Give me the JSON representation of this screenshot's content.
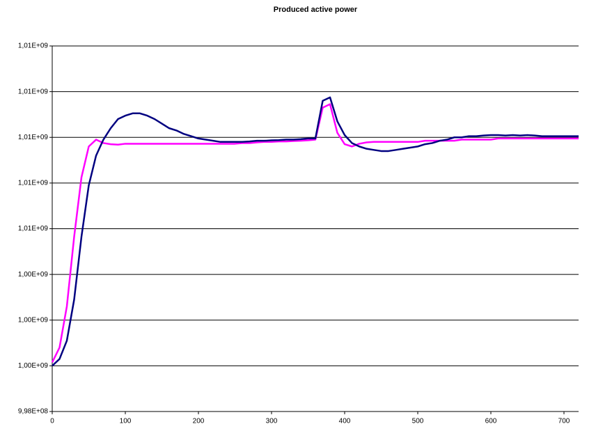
{
  "chart_data": {
    "type": "line",
    "title": "Produced active power",
    "x": [
      0,
      10,
      20,
      30,
      40,
      50,
      60,
      70,
      80,
      90,
      100,
      110,
      120,
      130,
      140,
      150,
      160,
      170,
      180,
      190,
      200,
      210,
      220,
      230,
      240,
      250,
      260,
      270,
      280,
      290,
      300,
      310,
      320,
      330,
      340,
      350,
      360,
      370,
      380,
      390,
      400,
      410,
      420,
      430,
      440,
      450,
      460,
      470,
      480,
      490,
      500,
      510,
      520,
      530,
      540,
      550,
      560,
      570,
      580,
      590,
      600,
      610,
      620,
      630,
      640,
      650,
      660,
      670,
      680,
      690,
      700,
      710,
      720
    ],
    "series": [
      {
        "color": "#ff00ff",
        "values": [
          1000150000,
          1000800000,
          1002600000,
          1005650000,
          1008250000,
          1009600000,
          1009900000,
          1009750000,
          1009700000,
          1009680000,
          1009720000,
          1009720000,
          1009720000,
          1009720000,
          1009720000,
          1009720000,
          1009720000,
          1009720000,
          1009720000,
          1009720000,
          1009720000,
          1009720000,
          1009720000,
          1009720000,
          1009720000,
          1009720000,
          1009750000,
          1009750000,
          1009780000,
          1009800000,
          1009800000,
          1009820000,
          1009820000,
          1009840000,
          1009850000,
          1009870000,
          1009900000,
          1011300000,
          1011450000,
          1010200000,
          1009700000,
          1009600000,
          1009720000,
          1009780000,
          1009800000,
          1009800000,
          1009800000,
          1009800000,
          1009800000,
          1009800000,
          1009800000,
          1009850000,
          1009850000,
          1009850000,
          1009850000,
          1009850000,
          1009900000,
          1009900000,
          1009900000,
          1009900000,
          1009900000,
          1009950000,
          1009950000,
          1009950000,
          1009950000,
          1009950000,
          1009950000,
          1009950000,
          1009950000,
          1009950000,
          1009950000,
          1009950000,
          1009950000
        ]
      },
      {
        "color": "#000080",
        "values": [
          1000000000,
          1000300000,
          1001100000,
          1002900000,
          1005650000,
          1007900000,
          1009200000,
          1009900000,
          1010400000,
          1010800000,
          1010950000,
          1011050000,
          1011050000,
          1010950000,
          1010800000,
          1010600000,
          1010400000,
          1010300000,
          1010150000,
          1010050000,
          1009950000,
          1009900000,
          1009850000,
          1009800000,
          1009800000,
          1009800000,
          1009800000,
          1009820000,
          1009850000,
          1009850000,
          1009870000,
          1009880000,
          1009900000,
          1009900000,
          1009920000,
          1009950000,
          1009950000,
          1011600000,
          1011750000,
          1010700000,
          1010100000,
          1009750000,
          1009600000,
          1009500000,
          1009450000,
          1009400000,
          1009400000,
          1009450000,
          1009500000,
          1009550000,
          1009600000,
          1009700000,
          1009750000,
          1009850000,
          1009900000,
          1010000000,
          1010000000,
          1010050000,
          1010050000,
          1010080000,
          1010100000,
          1010100000,
          1010080000,
          1010100000,
          1010080000,
          1010100000,
          1010080000,
          1010050000,
          1010050000,
          1010050000,
          1010050000,
          1010050000,
          1010050000
        ]
      }
    ],
    "xlim": [
      0,
      720
    ],
    "xticks": [
      0,
      100,
      200,
      300,
      400,
      500,
      600,
      700
    ],
    "ylim": [
      998000000,
      1014000000
    ],
    "yticks": [
      {
        "value": 998000000,
        "label": "9,98E+08"
      },
      {
        "value": 1000000000,
        "label": "1,00E+09"
      },
      {
        "value": 1002000000,
        "label": "1,00E+09"
      },
      {
        "value": 1004000000,
        "label": "1,00E+09"
      },
      {
        "value": 1006000000,
        "label": "1,01E+09"
      },
      {
        "value": 1008000000,
        "label": "1,01E+09"
      },
      {
        "value": 1010000000,
        "label": "1,01E+09"
      },
      {
        "value": 1012000000,
        "label": "1,01E+09"
      },
      {
        "value": 1014000000,
        "label": "1,01E+09"
      }
    ],
    "grid": true
  }
}
